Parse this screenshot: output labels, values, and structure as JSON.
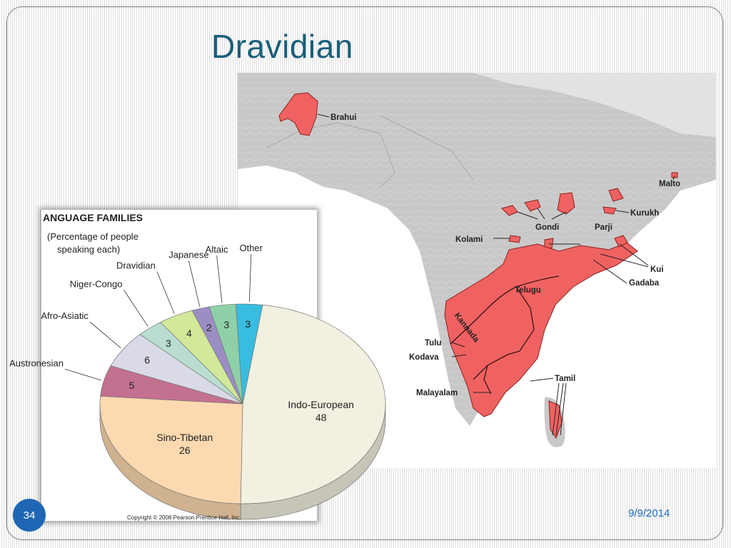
{
  "slide": {
    "title": "Dravidian",
    "slide_number": "34",
    "date": "9/9/2014"
  },
  "map": {
    "labels": {
      "brahui": "Brahui",
      "malto": "Malto",
      "kurukh": "Kurukh",
      "gondi": "Gondi",
      "parji": "Parji",
      "kolami": "Kolami",
      "kui": "Kui",
      "gadaba": "Gadaba",
      "telugu": "Telugu",
      "kannada": "Kannada",
      "tulu": "Tulu",
      "kodava": "Kodava",
      "tamil": "Tamil",
      "malayalam": "Malayalam"
    },
    "region_color": "#f06262",
    "land_color": "#c9c9c9"
  },
  "pie_figure": {
    "heading": "ANGUAGE FAMILIES",
    "subtitle_line1": "(Percentage of people",
    "subtitle_line2": "speaking each)",
    "copyright": "Copyright © 2008 Pearson Prentice Hall, Inc."
  },
  "chart_data": {
    "type": "pie",
    "title": "ANGUAGE FAMILIES",
    "subtitle": "(Percentage of people speaking each)",
    "slices": [
      {
        "label": "Indo-European",
        "value": 48,
        "color": "#f2f0e0"
      },
      {
        "label": "Sino-Tibetan",
        "value": 26,
        "color": "#fcd9b0"
      },
      {
        "label": "Austronesian",
        "value": 5,
        "color": "#c47090"
      },
      {
        "label": "Afro-Asiatic",
        "value": 6,
        "color": "#d9dae6"
      },
      {
        "label": "Niger-Congo",
        "value": 3,
        "color": "#b9ddd0"
      },
      {
        "label": "Dravidian",
        "value": 4,
        "color": "#d2e89a"
      },
      {
        "label": "Japanese",
        "value": 2,
        "color": "#9c8ec4"
      },
      {
        "label": "Altaic",
        "value": 3,
        "color": "#8fd0a8"
      },
      {
        "label": "Other",
        "value": 3,
        "color": "#38bde0"
      }
    ]
  }
}
